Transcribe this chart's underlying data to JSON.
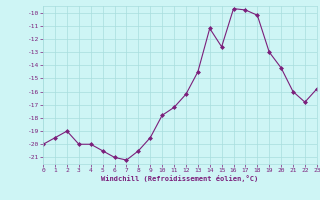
{
  "x": [
    0,
    1,
    2,
    3,
    4,
    5,
    6,
    7,
    8,
    9,
    10,
    11,
    12,
    13,
    14,
    15,
    16,
    17,
    18,
    19,
    20,
    21,
    22,
    23
  ],
  "y": [
    -20.0,
    -19.5,
    -19.0,
    -20.0,
    -20.0,
    -20.5,
    -21.0,
    -21.2,
    -20.5,
    -19.5,
    -17.8,
    -17.2,
    -16.2,
    -14.5,
    -11.2,
    -12.6,
    -9.7,
    -9.8,
    -10.2,
    -13.0,
    -14.2,
    -16.0,
    -16.8,
    -15.8
  ],
  "xlim": [
    0,
    23
  ],
  "ylim": [
    -21.5,
    -9.5
  ],
  "yticks": [
    -10,
    -11,
    -12,
    -13,
    -14,
    -15,
    -16,
    -17,
    -18,
    -19,
    -20,
    -21
  ],
  "xticks": [
    0,
    1,
    2,
    3,
    4,
    5,
    6,
    7,
    8,
    9,
    10,
    11,
    12,
    13,
    14,
    15,
    16,
    17,
    18,
    19,
    20,
    21,
    22,
    23
  ],
  "xlabel": "Windchill (Refroidissement éolien,°C)",
  "line_color": "#7B1F7B",
  "marker": "D",
  "marker_size": 2.0,
  "bg_color": "#cef5f5",
  "grid_color": "#a8dede",
  "tick_label_color": "#7B1F7B",
  "axis_label_color": "#7B1F7B"
}
